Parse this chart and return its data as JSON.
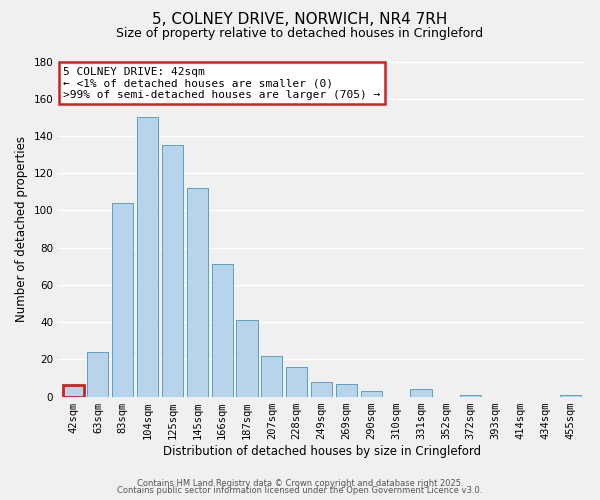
{
  "title": "5, COLNEY DRIVE, NORWICH, NR4 7RH",
  "subtitle": "Size of property relative to detached houses in Cringleford",
  "xlabel": "Distribution of detached houses by size in Cringleford",
  "ylabel": "Number of detached properties",
  "bin_labels": [
    "42sqm",
    "63sqm",
    "83sqm",
    "104sqm",
    "125sqm",
    "145sqm",
    "166sqm",
    "187sqm",
    "207sqm",
    "228sqm",
    "249sqm",
    "269sqm",
    "290sqm",
    "310sqm",
    "331sqm",
    "352sqm",
    "372sqm",
    "393sqm",
    "414sqm",
    "434sqm",
    "455sqm"
  ],
  "bar_values": [
    6,
    24,
    104,
    150,
    135,
    112,
    71,
    41,
    22,
    16,
    8,
    7,
    3,
    0,
    4,
    0,
    1,
    0,
    0,
    0,
    1
  ],
  "bar_color": "#b8d4ea",
  "bar_edge_color": "#5a9fc8",
  "highlight_index": 0,
  "highlight_color": "#cc2222",
  "annotation_title": "5 COLNEY DRIVE: 42sqm",
  "annotation_line1": "← <1% of detached houses are smaller (0)",
  "annotation_line2": ">99% of semi-detached houses are larger (705) →",
  "ylim": [
    0,
    180
  ],
  "yticks": [
    0,
    20,
    40,
    60,
    80,
    100,
    120,
    140,
    160,
    180
  ],
  "footer1": "Contains HM Land Registry data © Crown copyright and database right 2025.",
  "footer2": "Contains public sector information licensed under the Open Government Licence v3.0.",
  "background_color": "#f0f0f0",
  "title_fontsize": 11,
  "subtitle_fontsize": 9,
  "axis_label_fontsize": 8.5,
  "tick_fontsize": 7.5,
  "footer_fontsize": 6,
  "annotation_fontsize": 8
}
